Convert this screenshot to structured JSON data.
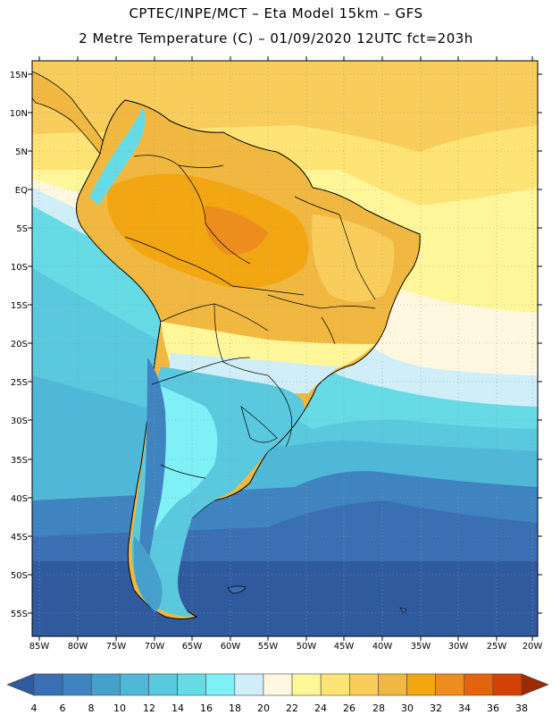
{
  "header": {
    "line1": "CPTEC/INPE/MCT –  Eta Model 15km – GFS",
    "line2": "2 Metre Temperature (C) – 01/09/2020 12UTC fct=203h"
  },
  "map": {
    "lat_labels": [
      "15N",
      "10N",
      "5N",
      "EQ",
      "5S",
      "10S",
      "15S",
      "20S",
      "25S",
      "30S",
      "35S",
      "40S",
      "45S",
      "50S",
      "55S"
    ],
    "lon_labels": [
      "85W",
      "80W",
      "75W",
      "70W",
      "65W",
      "60W",
      "55W",
      "50W",
      "45W",
      "40W",
      "35W",
      "30W",
      "25W",
      "20W"
    ]
  },
  "colorbar": {
    "ticks": [
      "4",
      "6",
      "8",
      "10",
      "12",
      "14",
      "16",
      "18",
      "20",
      "22",
      "24",
      "26",
      "28",
      "30",
      "32",
      "34",
      "36",
      "38"
    ],
    "colors": [
      "#3a6fb3",
      "#3f83c0",
      "#46a0cc",
      "#4fb7d8",
      "#5ac8dd",
      "#66dbe6",
      "#7ff0f5",
      "#cfeef8",
      "#fff7df",
      "#fff69a",
      "#fde474",
      "#f8cd5c",
      "#f1b841",
      "#f2a612",
      "#ec8d1e",
      "#e4640e",
      "#d44106",
      "#b83207"
    ],
    "left_end_color": "#2f5b9e",
    "right_end_color": "#9a2b05"
  },
  "legend_colors": {
    "ocean_cold": "#2f5b9e",
    "ocean_cool": "#3f83c0",
    "ocean_mid": "#4fb7d8",
    "ocean_warm": "#5ac8dd",
    "ocean_tropical": "#fde474",
    "land_hot": "#f1b841",
    "land_hottest": "#f2a612",
    "andes_cold": "#66dbe6",
    "coast": "#000000",
    "grid": "#9a9a9a"
  }
}
